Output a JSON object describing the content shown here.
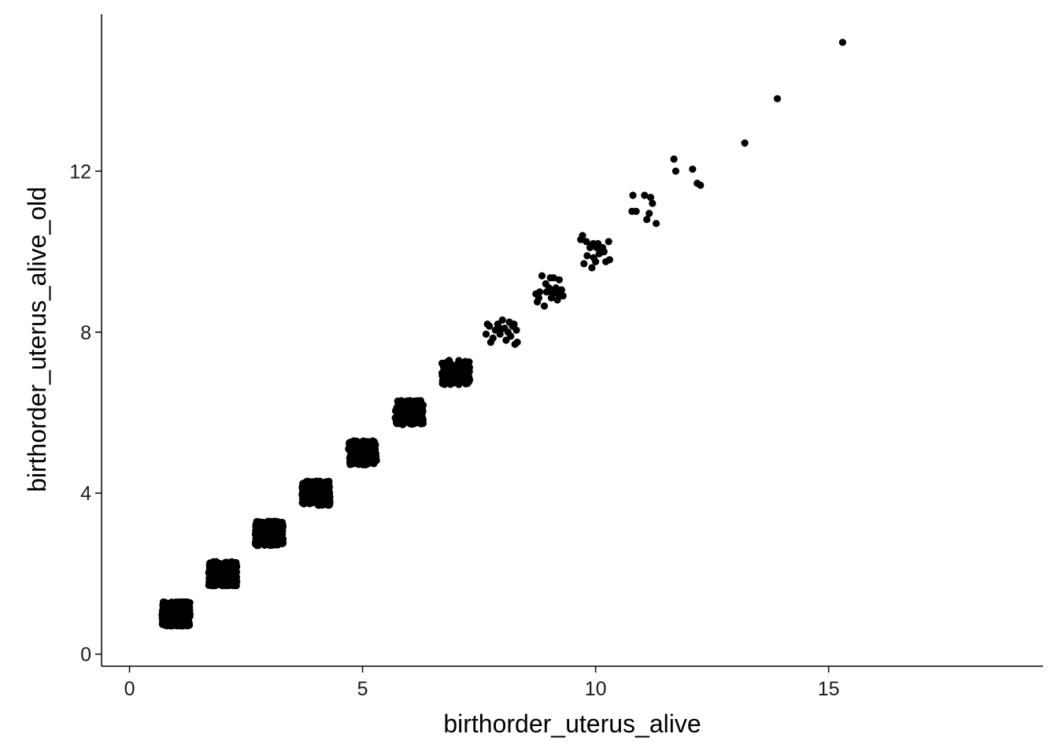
{
  "chart_data": {
    "type": "scatter",
    "title": "",
    "xlabel": "birthorder_uterus_alive",
    "ylabel": "birthorder_uterus_alive_old",
    "xlim": [
      -0.6,
      19.6
    ],
    "ylim": [
      -0.3,
      15.9
    ],
    "x_ticks": [
      0,
      5,
      10,
      15
    ],
    "y_ticks": [
      0,
      4,
      8,
      12
    ],
    "grid": false,
    "legend": "none",
    "point_color": "#000000",
    "clusters": [
      {
        "x": 1,
        "y": 1,
        "spread": 0.3,
        "count": 400
      },
      {
        "x": 2,
        "y": 2,
        "spread": 0.3,
        "count": 400
      },
      {
        "x": 3,
        "y": 3,
        "spread": 0.3,
        "count": 350
      },
      {
        "x": 4,
        "y": 4,
        "spread": 0.3,
        "count": 300
      },
      {
        "x": 5,
        "y": 5,
        "spread": 0.3,
        "count": 250
      },
      {
        "x": 6,
        "y": 6,
        "spread": 0.3,
        "count": 160
      },
      {
        "x": 7,
        "y": 7,
        "spread": 0.3,
        "count": 110
      }
    ],
    "points": [
      [
        7.65,
        7.95
      ],
      [
        7.72,
        8.15
      ],
      [
        7.8,
        7.85
      ],
      [
        7.85,
        8.05
      ],
      [
        7.9,
        8.2
      ],
      [
        7.95,
        7.95
      ],
      [
        8.0,
        8.3
      ],
      [
        8.05,
        8.1
      ],
      [
        8.08,
        7.8
      ],
      [
        8.12,
        8.0
      ],
      [
        8.18,
        7.9
      ],
      [
        8.22,
        8.15
      ],
      [
        8.27,
        7.7
      ],
      [
        8.3,
        8.05
      ],
      [
        8.32,
        7.75
      ],
      [
        7.75,
        7.75
      ],
      [
        8.15,
        8.25
      ],
      [
        7.68,
        8.2
      ],
      [
        8.25,
        8.2
      ],
      [
        7.98,
        8.08
      ],
      [
        8.72,
        8.95
      ],
      [
        8.75,
        8.75
      ],
      [
        8.8,
        9.0
      ],
      [
        8.85,
        9.4
      ],
      [
        8.9,
        8.65
      ],
      [
        8.93,
        9.2
      ],
      [
        9.0,
        9.1
      ],
      [
        9.05,
        8.85
      ],
      [
        9.1,
        9.35
      ],
      [
        9.12,
        9.0
      ],
      [
        9.18,
        8.8
      ],
      [
        9.22,
        9.3
      ],
      [
        9.27,
        9.05
      ],
      [
        9.3,
        8.9
      ],
      [
        8.95,
        9.0
      ],
      [
        9.08,
        8.95
      ],
      [
        8.78,
        8.85
      ],
      [
        9.2,
        8.95
      ],
      [
        9.15,
        9.1
      ],
      [
        9.03,
        9.35
      ],
      [
        9.68,
        10.3
      ],
      [
        9.72,
        10.4
      ],
      [
        9.75,
        9.7
      ],
      [
        9.8,
        10.25
      ],
      [
        9.82,
        9.9
      ],
      [
        9.88,
        10.1
      ],
      [
        9.92,
        9.6
      ],
      [
        9.95,
        10.2
      ],
      [
        10.0,
        9.75
      ],
      [
        10.02,
        10.1
      ],
      [
        10.08,
        9.95
      ],
      [
        10.12,
        10.05
      ],
      [
        10.18,
        10.0
      ],
      [
        10.22,
        9.75
      ],
      [
        10.28,
        10.25
      ],
      [
        10.3,
        9.8
      ],
      [
        9.9,
        10.15
      ],
      [
        10.05,
        10.2
      ],
      [
        10.15,
        10.1
      ],
      [
        9.96,
        9.85
      ],
      [
        10.78,
        11.0
      ],
      [
        10.8,
        11.4
      ],
      [
        10.87,
        11.0
      ],
      [
        11.05,
        11.4
      ],
      [
        11.1,
        10.8
      ],
      [
        11.18,
        11.35
      ],
      [
        11.15,
        10.95
      ],
      [
        11.22,
        11.2
      ],
      [
        11.3,
        10.7
      ],
      [
        11.68,
        12.3
      ],
      [
        11.72,
        12.0
      ],
      [
        12.08,
        12.05
      ],
      [
        12.18,
        11.7
      ],
      [
        12.25,
        11.65
      ],
      [
        13.2,
        12.7
      ],
      [
        13.9,
        13.8
      ],
      [
        15.3,
        15.2
      ]
    ]
  }
}
